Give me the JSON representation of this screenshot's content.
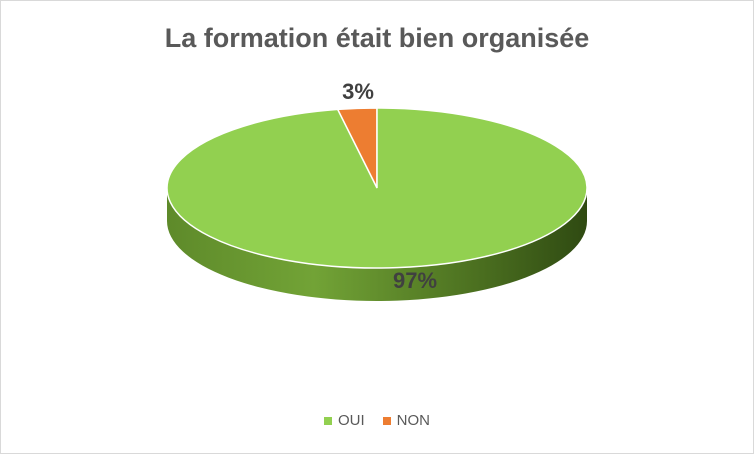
{
  "chart_data": {
    "type": "pie",
    "title": "La formation était bien organisée",
    "slices": [
      {
        "name": "OUI",
        "value": 97,
        "label": "97%",
        "color": "#92D050"
      },
      {
        "name": "NON",
        "value": 3,
        "label": "3%",
        "color": "#ED7D31"
      }
    ],
    "legend_position": "bottom",
    "style": "3d"
  }
}
